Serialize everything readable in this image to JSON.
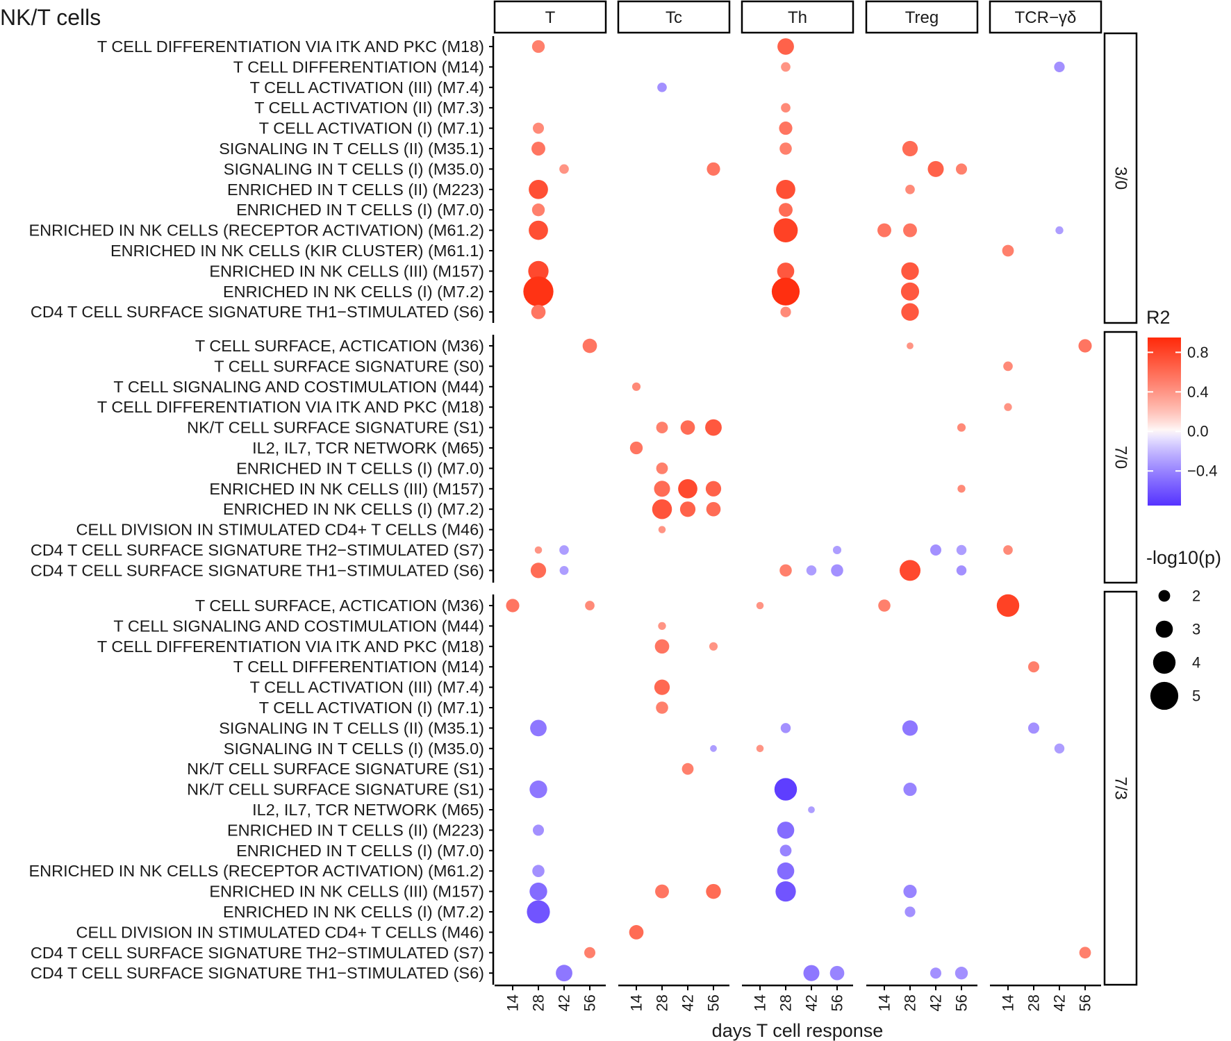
{
  "chart_data": {
    "type": "scatter",
    "title": "NK/T cells",
    "xlabel": "days T cell response",
    "ylabel": "",
    "x_ticks": [
      "14",
      "28",
      "42",
      "56"
    ],
    "column_panels": [
      "T",
      "Tc",
      "Th",
      "Treg",
      "TCR−γδ"
    ],
    "row_panels": [
      {
        "label": "3/0",
        "rows": [
          "T CELL DIFFERENTIATION VIA ITK AND PKC (M18)",
          "T CELL DIFFERENTIATION (M14)",
          "T CELL ACTIVATION (III) (M7.4)",
          "T CELL ACTIVATION (II) (M7.3)",
          "T CELL ACTIVATION (I) (M7.1)",
          "SIGNALING IN T CELLS (II) (M35.1)",
          "SIGNALING IN T CELLS (I) (M35.0)",
          "ENRICHED IN T CELLS (II) (M223)",
          "ENRICHED IN T CELLS (I) (M7.0)",
          "ENRICHED IN NK CELLS (RECEPTOR ACTIVATION) (M61.2)",
          "ENRICHED IN NK CELLS (KIR CLUSTER) (M61.1)",
          "ENRICHED IN NK CELLS (III) (M157)",
          "ENRICHED IN NK CELLS (I) (M7.2)",
          "CD4 T CELL SURFACE SIGNATURE TH1−STIMULATED (S6)"
        ]
      },
      {
        "label": "7/0",
        "rows": [
          "T CELL SURFACE, ACTICATION (M36)",
          "T CELL SURFACE SIGNATURE (S0)",
          "T CELL SIGNALING AND COSTIMULATION (M44)",
          "T CELL DIFFERENTIATION VIA ITK AND PKC (M18)",
          "NK/T  CELL SURFACE SIGNATURE (S1)",
          "IL2, IL7, TCR NETWORK (M65)",
          "ENRICHED IN T CELLS (I) (M7.0)",
          "ENRICHED IN NK CELLS (III) (M157)",
          "ENRICHED IN NK CELLS (I) (M7.2)",
          "CELL DIVISION IN STIMULATED CD4+ T CELLS (M46)",
          "CD4 T CELL SURFACE SIGNATURE TH2−STIMULATED (S7)",
          "CD4 T CELL SURFACE SIGNATURE TH1−STIMULATED (S6)"
        ]
      },
      {
        "label": "7/3",
        "rows": [
          "T CELL SURFACE, ACTICATION (M36)",
          "T CELL SIGNALING AND COSTIMULATION (M44)",
          "T CELL DIFFERENTIATION VIA ITK AND PKC (M18)",
          "T CELL DIFFERENTIATION (M14)",
          "T CELL ACTIVATION (III) (M7.4)",
          "T CELL ACTIVATION (I) (M7.1)",
          "SIGNALING IN T CELLS (II) (M35.1)",
          "SIGNALING IN T CELLS (I) (M35.0)",
          "NK/T CELL SURFACE SIGNATURE (S1)",
          "NK/T  CELL SURFACE SIGNATURE (S1)",
          "IL2, IL7, TCR NETWORK (M65)",
          "ENRICHED IN T CELLS (II) (M223)",
          "ENRICHED IN T CELLS (I) (M7.0)",
          "ENRICHED IN NK CELLS (RECEPTOR ACTIVATION) (M61.2)",
          "ENRICHED IN NK CELLS (III) (M157)",
          "ENRICHED IN NK CELLS (I) (M7.2)",
          "CELL DIVISION IN STIMULATED CD4+ T CELLS (M46)",
          "CD4 T CELL SURFACE SIGNATURE TH2−STIMULATED (S7)",
          "CD4 T CELL SURFACE SIGNATURE TH1−STIMULATED (S6)"
        ]
      }
    ],
    "point_fields": [
      "row_panel",
      "row_index",
      "column_panel",
      "day",
      "R2",
      "neg_log10_p"
    ],
    "points": [
      [
        0,
        0,
        0,
        28,
        0.5,
        2.2
      ],
      [
        0,
        4,
        0,
        28,
        0.45,
        1.9
      ],
      [
        0,
        5,
        0,
        28,
        0.55,
        2.4
      ],
      [
        0,
        6,
        0,
        42,
        0.4,
        1.6
      ],
      [
        0,
        7,
        0,
        28,
        0.75,
        3.4
      ],
      [
        0,
        8,
        0,
        28,
        0.5,
        2.2
      ],
      [
        0,
        9,
        0,
        28,
        0.75,
        3.4
      ],
      [
        0,
        11,
        0,
        28,
        0.78,
        3.6
      ],
      [
        0,
        12,
        0,
        28,
        0.9,
        5.4
      ],
      [
        0,
        13,
        0,
        28,
        0.55,
        2.5
      ],
      [
        0,
        2,
        1,
        28,
        -0.35,
        1.6
      ],
      [
        0,
        6,
        1,
        56,
        0.55,
        2.3
      ],
      [
        0,
        0,
        2,
        28,
        0.65,
        2.9
      ],
      [
        0,
        1,
        2,
        28,
        0.4,
        1.6
      ],
      [
        0,
        3,
        2,
        28,
        0.45,
        1.6
      ],
      [
        0,
        4,
        2,
        28,
        0.55,
        2.3
      ],
      [
        0,
        5,
        2,
        28,
        0.5,
        2.1
      ],
      [
        0,
        7,
        2,
        28,
        0.75,
        3.4
      ],
      [
        0,
        8,
        2,
        28,
        0.6,
        2.4
      ],
      [
        0,
        9,
        2,
        28,
        0.82,
        4.3
      ],
      [
        0,
        11,
        2,
        28,
        0.7,
        3.0
      ],
      [
        0,
        12,
        2,
        28,
        0.92,
        5.0
      ],
      [
        0,
        13,
        2,
        28,
        0.45,
        1.8
      ],
      [
        0,
        5,
        3,
        28,
        0.6,
        2.7
      ],
      [
        0,
        6,
        3,
        42,
        0.65,
        2.8
      ],
      [
        0,
        6,
        3,
        56,
        0.5,
        1.9
      ],
      [
        0,
        7,
        3,
        28,
        0.45,
        1.6
      ],
      [
        0,
        9,
        3,
        14,
        0.55,
        2.4
      ],
      [
        0,
        9,
        3,
        28,
        0.55,
        2.4
      ],
      [
        0,
        11,
        3,
        28,
        0.7,
        3.1
      ],
      [
        0,
        12,
        3,
        28,
        0.7,
        3.2
      ],
      [
        0,
        13,
        3,
        28,
        0.7,
        3.1
      ],
      [
        0,
        1,
        4,
        42,
        -0.35,
        1.8
      ],
      [
        0,
        9,
        4,
        42,
        -0.3,
        1.3
      ],
      [
        0,
        10,
        4,
        14,
        0.5,
        2.0
      ],
      [
        1,
        0,
        0,
        56,
        0.55,
        2.5
      ],
      [
        1,
        10,
        0,
        28,
        0.4,
        1.2
      ],
      [
        1,
        10,
        0,
        42,
        -0.3,
        1.6
      ],
      [
        1,
        11,
        0,
        28,
        0.6,
        2.7
      ],
      [
        1,
        11,
        0,
        42,
        -0.3,
        1.5
      ],
      [
        1,
        2,
        1,
        14,
        0.45,
        1.4
      ],
      [
        1,
        4,
        1,
        28,
        0.5,
        2.0
      ],
      [
        1,
        4,
        1,
        42,
        0.6,
        2.5
      ],
      [
        1,
        4,
        1,
        56,
        0.7,
        2.9
      ],
      [
        1,
        5,
        1,
        14,
        0.55,
        2.2
      ],
      [
        1,
        6,
        1,
        28,
        0.5,
        2.0
      ],
      [
        1,
        7,
        1,
        28,
        0.6,
        2.8
      ],
      [
        1,
        7,
        1,
        42,
        0.78,
        3.4
      ],
      [
        1,
        7,
        1,
        56,
        0.65,
        2.7
      ],
      [
        1,
        8,
        1,
        28,
        0.72,
        3.5
      ],
      [
        1,
        8,
        1,
        42,
        0.65,
        2.7
      ],
      [
        1,
        8,
        1,
        56,
        0.6,
        2.5
      ],
      [
        1,
        9,
        1,
        28,
        0.4,
        1.2
      ],
      [
        1,
        10,
        2,
        56,
        -0.3,
        1.4
      ],
      [
        1,
        11,
        2,
        28,
        0.5,
        2.1
      ],
      [
        1,
        11,
        2,
        42,
        -0.3,
        1.7
      ],
      [
        1,
        11,
        2,
        56,
        -0.35,
        2.1
      ],
      [
        1,
        0,
        3,
        28,
        0.4,
        1.1
      ],
      [
        1,
        4,
        3,
        56,
        0.45,
        1.4
      ],
      [
        1,
        7,
        3,
        56,
        0.45,
        1.3
      ],
      [
        1,
        10,
        3,
        42,
        -0.35,
        1.9
      ],
      [
        1,
        10,
        3,
        56,
        -0.3,
        1.7
      ],
      [
        1,
        11,
        3,
        28,
        0.78,
        3.7
      ],
      [
        1,
        11,
        3,
        56,
        -0.35,
        1.7
      ],
      [
        1,
        0,
        4,
        56,
        0.55,
        2.3
      ],
      [
        1,
        1,
        4,
        14,
        0.45,
        1.6
      ],
      [
        1,
        3,
        4,
        14,
        0.4,
        1.3
      ],
      [
        1,
        10,
        4,
        14,
        0.45,
        1.6
      ],
      [
        2,
        0,
        0,
        14,
        0.55,
        2.3
      ],
      [
        2,
        0,
        0,
        56,
        0.45,
        1.6
      ],
      [
        2,
        6,
        0,
        28,
        -0.45,
        2.9
      ],
      [
        2,
        9,
        0,
        28,
        -0.45,
        3.1
      ],
      [
        2,
        11,
        0,
        28,
        -0.35,
        1.9
      ],
      [
        2,
        13,
        0,
        28,
        -0.35,
        2.1
      ],
      [
        2,
        14,
        0,
        28,
        -0.5,
        3.1
      ],
      [
        2,
        15,
        0,
        28,
        -0.6,
        4.1
      ],
      [
        2,
        17,
        0,
        56,
        0.5,
        1.9
      ],
      [
        2,
        18,
        0,
        42,
        -0.45,
        2.9
      ],
      [
        2,
        1,
        1,
        28,
        0.4,
        1.3
      ],
      [
        2,
        2,
        1,
        28,
        0.55,
        2.5
      ],
      [
        2,
        2,
        1,
        56,
        0.4,
        1.4
      ],
      [
        2,
        4,
        1,
        28,
        0.62,
        2.7
      ],
      [
        2,
        5,
        1,
        28,
        0.5,
        2.1
      ],
      [
        2,
        7,
        1,
        56,
        -0.3,
        1.1
      ],
      [
        2,
        8,
        1,
        42,
        0.5,
        2.0
      ],
      [
        2,
        14,
        1,
        28,
        0.55,
        2.4
      ],
      [
        2,
        14,
        1,
        56,
        0.6,
        2.6
      ],
      [
        2,
        16,
        1,
        14,
        0.6,
        2.5
      ],
      [
        2,
        0,
        2,
        14,
        0.4,
        1.2
      ],
      [
        2,
        6,
        2,
        28,
        -0.35,
        1.7
      ],
      [
        2,
        7,
        2,
        14,
        0.4,
        1.2
      ],
      [
        2,
        9,
        2,
        28,
        -0.7,
        4.0
      ],
      [
        2,
        10,
        2,
        42,
        -0.3,
        1.1
      ],
      [
        2,
        11,
        2,
        28,
        -0.5,
        3.0
      ],
      [
        2,
        12,
        2,
        28,
        -0.4,
        2.0
      ],
      [
        2,
        13,
        2,
        28,
        -0.5,
        3.0
      ],
      [
        2,
        14,
        2,
        28,
        -0.6,
        3.6
      ],
      [
        2,
        18,
        2,
        42,
        -0.45,
        2.8
      ],
      [
        2,
        18,
        2,
        56,
        -0.4,
        2.5
      ],
      [
        2,
        0,
        3,
        14,
        0.5,
        2.1
      ],
      [
        2,
        6,
        3,
        28,
        -0.45,
        2.7
      ],
      [
        2,
        9,
        3,
        28,
        -0.4,
        2.3
      ],
      [
        2,
        14,
        3,
        28,
        -0.4,
        2.3
      ],
      [
        2,
        15,
        3,
        28,
        -0.35,
        1.8
      ],
      [
        2,
        18,
        3,
        42,
        -0.35,
        1.9
      ],
      [
        2,
        18,
        3,
        56,
        -0.35,
        2.2
      ],
      [
        2,
        0,
        4,
        14,
        0.82,
        4.0
      ],
      [
        2,
        3,
        4,
        28,
        0.5,
        1.9
      ],
      [
        2,
        6,
        4,
        28,
        -0.35,
        1.9
      ],
      [
        2,
        7,
        4,
        42,
        -0.3,
        1.7
      ],
      [
        2,
        17,
        4,
        56,
        0.5,
        2.0
      ]
    ],
    "color_legend": {
      "title": "R2",
      "ticks": [
        "0.8",
        "0.4",
        "0.0",
        "−0.4"
      ],
      "tick_values": [
        0.8,
        0.4,
        0.0,
        -0.4
      ],
      "range": [
        -0.75,
        0.95
      ],
      "low_color": "#5533ff",
      "mid_color": "#ffffff",
      "high_color": "#ff2a0a"
    },
    "size_legend": {
      "title": "-log10(p)",
      "values": [
        2,
        3,
        4,
        5
      ],
      "labels": [
        "2",
        "3",
        "4",
        "5"
      ]
    }
  }
}
